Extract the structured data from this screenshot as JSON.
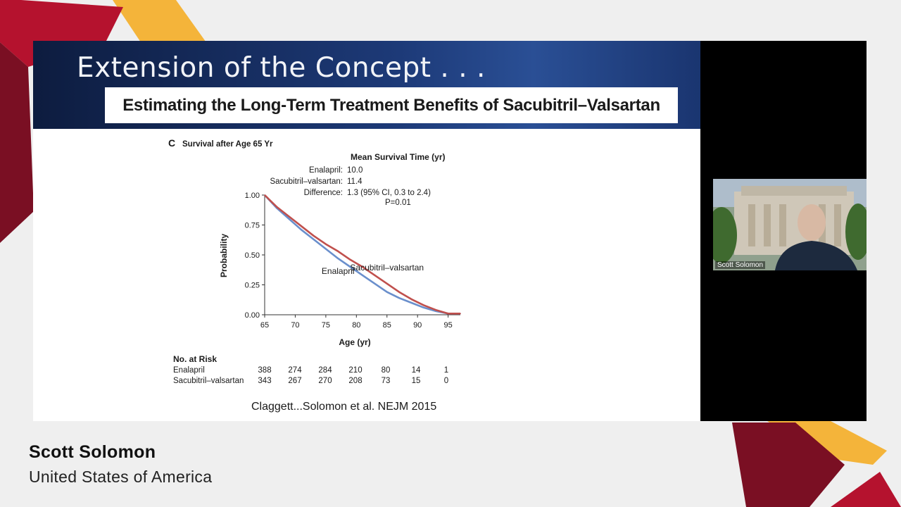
{
  "slide": {
    "title": "Extension of the Concept . . .",
    "subtitle": "Estimating the Long-Term Treatment Benefits of Sacubitril–Valsartan",
    "panel_letter": "C",
    "panel_title": "Survival after Age 65 Yr",
    "stats": {
      "header": "Mean Survival Time (yr)",
      "rows": [
        {
          "label": "Enalapril:",
          "value": "10.0"
        },
        {
          "label": "Sacubitril–valsartan:",
          "value": "11.4"
        },
        {
          "label": "Difference:",
          "value": "1.3 (95% CI, 0.3 to 2.4)"
        }
      ],
      "p_value": "P=0.01"
    },
    "risk_table": {
      "header": "No. at Risk",
      "rows": [
        {
          "label": "Enalapril",
          "values": [
            "388",
            "274",
            "284",
            "210",
            "80",
            "14",
            "1"
          ]
        },
        {
          "label": "Sacubitril–valsartan",
          "values": [
            "343",
            "267",
            "270",
            "208",
            "73",
            "15",
            "0"
          ]
        }
      ]
    },
    "citation": "Claggett...Solomon et al. NEJM 2015"
  },
  "chart_data": {
    "type": "line",
    "title": "Survival after Age 65 Yr",
    "xlabel": "Age (yr)",
    "ylabel": "Probability",
    "xlim": [
      65,
      97
    ],
    "ylim": [
      0,
      1
    ],
    "x_ticks": [
      "65",
      "70",
      "75",
      "80",
      "85",
      "90",
      "95"
    ],
    "y_ticks": [
      "0.00",
      "0.25",
      "0.50",
      "0.75",
      "1.00"
    ],
    "series": [
      {
        "name": "Enalapril",
        "color": "#6a8fcc",
        "x": [
          65,
          67,
          69,
          71,
          73,
          75,
          77,
          79,
          81,
          83,
          85,
          87,
          89,
          91,
          93,
          95,
          97
        ],
        "y": [
          1.0,
          0.89,
          0.8,
          0.71,
          0.63,
          0.55,
          0.47,
          0.4,
          0.33,
          0.26,
          0.19,
          0.14,
          0.1,
          0.06,
          0.03,
          0.01,
          0.01
        ]
      },
      {
        "name": "Sacubitril–valsartan",
        "color": "#c0504d",
        "x": [
          65,
          67,
          69,
          71,
          73,
          75,
          77,
          79,
          81,
          83,
          85,
          87,
          89,
          91,
          93,
          95,
          97
        ],
        "y": [
          1.0,
          0.9,
          0.82,
          0.74,
          0.66,
          0.59,
          0.53,
          0.46,
          0.4,
          0.33,
          0.26,
          0.19,
          0.13,
          0.08,
          0.04,
          0.01,
          0.01
        ]
      }
    ],
    "annotations": [
      {
        "text": "Enalapril",
        "x": 77,
        "y": 0.34
      },
      {
        "text": "Sacubitril–valsartan",
        "x": 85,
        "y": 0.37
      }
    ]
  },
  "webcam": {
    "label": "Scott Solomon"
  },
  "speaker": {
    "name": "Scott Solomon",
    "country": "United States of America"
  },
  "colors": {
    "accent_dark_red": "#7a0f23",
    "accent_red": "#b5122e",
    "accent_yellow": "#f4b43a"
  }
}
